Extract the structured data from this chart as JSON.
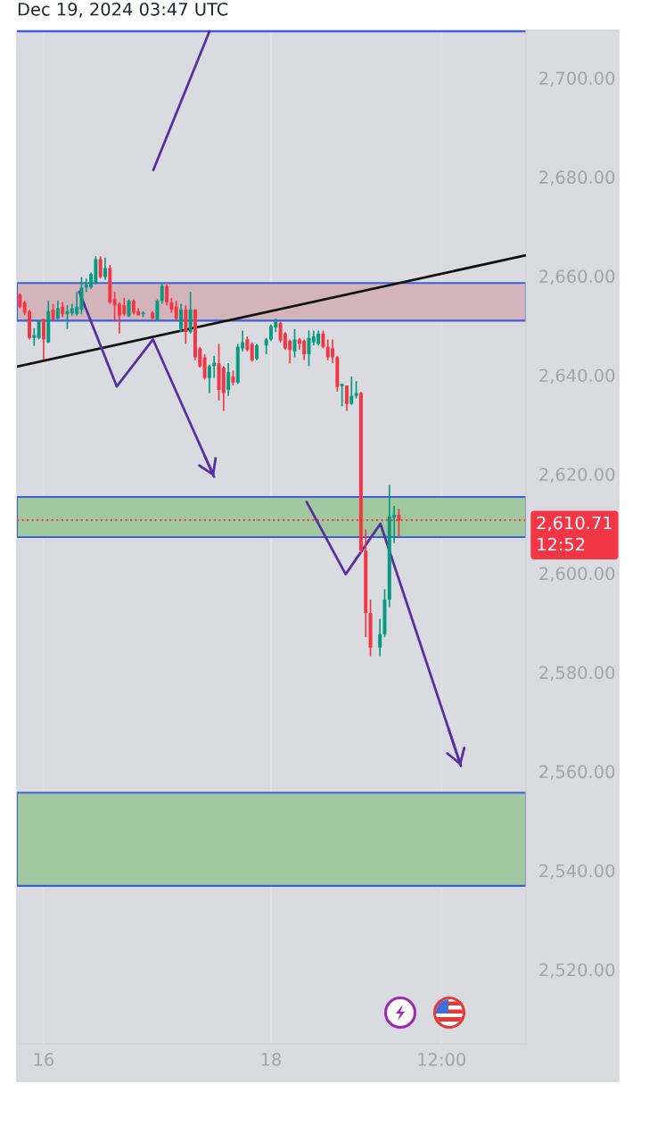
{
  "chart_data": {
    "type": "candlestick",
    "title": "Dec 19, 2024 03:47 UTC",
    "x": [
      "2024-12-15T19:00",
      "2024-12-15T20:00",
      "2024-12-15T21:00",
      "2024-12-15T22:00",
      "2024-12-15T23:00",
      "2024-12-16T00:00",
      "2024-12-16T01:00",
      "2024-12-16T02:00",
      "2024-12-16T03:00",
      "2024-12-16T04:00",
      "2024-12-16T05:00",
      "2024-12-16T06:00",
      "2024-12-16T07:00",
      "2024-12-16T08:00",
      "2024-12-16T09:00",
      "2024-12-16T10:00",
      "2024-12-16T11:00",
      "2024-12-16T12:00",
      "2024-12-16T13:00",
      "2024-12-16T14:00",
      "2024-12-16T15:00",
      "2024-12-16T16:00",
      "2024-12-16T17:00",
      "2024-12-16T18:00",
      "2024-12-16T19:00",
      "2024-12-16T20:00",
      "2024-12-16T21:00",
      "2024-12-16T23:00",
      "2024-12-17T00:00",
      "2024-12-17T01:00",
      "2024-12-17T02:00",
      "2024-12-17T03:00",
      "2024-12-17T04:00",
      "2024-12-17T05:00",
      "2024-12-17T06:00",
      "2024-12-17T07:00",
      "2024-12-17T08:00",
      "2024-12-17T09:00",
      "2024-12-17T10:00",
      "2024-12-17T11:00",
      "2024-12-17T12:00",
      "2024-12-17T13:00",
      "2024-12-17T14:00",
      "2024-12-17T15:00",
      "2024-12-17T16:00",
      "2024-12-17T17:00",
      "2024-12-17T18:00",
      "2024-12-17T19:00",
      "2024-12-17T20:00",
      "2024-12-17T21:00",
      "2024-12-17T23:00",
      "2024-12-18T00:00",
      "2024-12-18T01:00",
      "2024-12-18T02:00",
      "2024-12-18T03:00",
      "2024-12-18T04:00",
      "2024-12-18T05:00",
      "2024-12-18T06:00",
      "2024-12-18T07:00",
      "2024-12-18T08:00",
      "2024-12-18T09:00",
      "2024-12-18T10:00",
      "2024-12-18T11:00",
      "2024-12-18T12:00",
      "2024-12-18T13:00",
      "2024-12-18T14:00",
      "2024-12-18T15:00",
      "2024-12-18T16:00",
      "2024-12-18T17:00",
      "2024-12-18T18:00",
      "2024-12-18T19:00",
      "2024-12-18T20:00",
      "2024-12-18T21:00",
      "2024-12-18T23:00",
      "2024-12-19T00:00",
      "2024-12-19T01:00",
      "2024-12-19T02:00",
      "2024-12-19T03:00"
    ],
    "ohlc": [
      [
        2656.2,
        2656.5,
        2653.5,
        2653.8
      ],
      [
        2654.7,
        2655.0,
        2652.1,
        2652.6
      ],
      [
        2652.9,
        2653.2,
        2647.2,
        2647.5
      ],
      [
        2647.5,
        2649.5,
        2645.9,
        2648.1
      ],
      [
        2647.5,
        2651.1,
        2647.2,
        2651.0
      ],
      [
        2651.3,
        2651.4,
        2643.1,
        2647.2
      ],
      [
        2646.6,
        2655.0,
        2646.5,
        2652.9
      ],
      [
        2653.2,
        2654.4,
        2651.1,
        2651.3
      ],
      [
        2651.4,
        2655.0,
        2651.1,
        2653.5
      ],
      [
        2653.8,
        2654.7,
        2651.7,
        2652.3
      ],
      [
        2652.3,
        2654.1,
        2649.3,
        2652.9
      ],
      [
        2652.5,
        2654.4,
        2652.0,
        2653.5
      ],
      [
        2652.3,
        2656.8,
        2652.0,
        2653.8
      ],
      [
        2653.2,
        2659.8,
        2652.3,
        2657.7
      ],
      [
        2657.7,
        2659.5,
        2656.8,
        2658.3
      ],
      [
        2657.7,
        2660.7,
        2657.4,
        2660.4
      ],
      [
        2658.6,
        2664.0,
        2658.3,
        2663.4
      ],
      [
        2663.4,
        2664.0,
        2659.5,
        2659.8
      ],
      [
        2659.8,
        2663.7,
        2659.2,
        2661.6
      ],
      [
        2661.6,
        2662.2,
        2654.4,
        2654.7
      ],
      [
        2655.3,
        2656.8,
        2650.8,
        2654.1
      ],
      [
        2654.4,
        2654.7,
        2648.4,
        2652.0
      ],
      [
        2654.1,
        2655.6,
        2651.9,
        2652.3
      ],
      [
        2651.9,
        2655.3,
        2651.7,
        2655.0
      ],
      [
        2655.0,
        2655.3,
        2652.3,
        2652.6
      ],
      [
        2652.9,
        2653.5,
        2652.0,
        2652.1
      ],
      [
        2652.3,
        2652.9,
        2651.7,
        2652.6
      ],
      [
        2652.6,
        2652.9,
        2651.3,
        2651.4
      ],
      [
        2651.1,
        2655.3,
        2650.9,
        2655.0
      ],
      [
        2655.0,
        2658.6,
        2654.4,
        2658.0
      ],
      [
        2658.0,
        2658.3,
        2654.1,
        2654.7
      ],
      [
        2654.7,
        2655.6,
        2652.6,
        2653.2
      ],
      [
        2653.8,
        2655.0,
        2651.1,
        2651.4
      ],
      [
        2649.3,
        2654.4,
        2648.7,
        2653.2
      ],
      [
        2653.2,
        2654.1,
        2646.3,
        2648.7
      ],
      [
        2648.7,
        2656.8,
        2648.4,
        2653.2
      ],
      [
        2653.2,
        2653.3,
        2643.0,
        2643.6
      ],
      [
        2645.4,
        2645.7,
        2641.5,
        2641.8
      ],
      [
        2643.6,
        2644.2,
        2639.1,
        2639.4
      ],
      [
        2639.4,
        2642.1,
        2636.4,
        2641.8
      ],
      [
        2641.8,
        2643.9,
        2639.4,
        2642.5
      ],
      [
        2642.4,
        2646.3,
        2634.9,
        2637.0
      ],
      [
        2641.5,
        2641.8,
        2632.8,
        2636.4
      ],
      [
        2637.0,
        2642.4,
        2635.8,
        2640.6
      ],
      [
        2639.7,
        2640.9,
        2637.9,
        2638.5
      ],
      [
        2638.5,
        2646.3,
        2638.2,
        2645.7
      ],
      [
        2645.4,
        2649.0,
        2644.8,
        2646.6
      ],
      [
        2647.2,
        2647.8,
        2644.8,
        2645.1
      ],
      [
        2646.3,
        2646.6,
        2642.7,
        2643.0
      ],
      [
        2643.3,
        2646.3,
        2643.0,
        2646.0
      ],
      [
        2646.0,
        2647.5,
        2644.2,
        2647.2
      ],
      [
        2647.2,
        2650.2,
        2646.9,
        2649.9
      ],
      [
        2649.6,
        2651.4,
        2648.7,
        2650.8
      ],
      [
        2650.5,
        2650.8,
        2646.6,
        2647.0
      ],
      [
        2648.4,
        2648.7,
        2645.1,
        2645.4
      ],
      [
        2646.9,
        2647.2,
        2642.4,
        2645.1
      ],
      [
        2644.8,
        2649.3,
        2643.6,
        2647.2
      ],
      [
        2647.2,
        2647.5,
        2645.1,
        2646.3
      ],
      [
        2646.9,
        2647.2,
        2643.0,
        2644.2
      ],
      [
        2644.2,
        2649.0,
        2641.8,
        2647.5
      ],
      [
        2646.6,
        2649.0,
        2646.0,
        2647.8
      ],
      [
        2646.3,
        2649.0,
        2646.0,
        2648.4
      ],
      [
        2648.4,
        2649.0,
        2645.4,
        2645.7
      ],
      [
        2645.7,
        2647.2,
        2643.0,
        2643.6
      ],
      [
        2645.4,
        2647.2,
        2642.4,
        2643.6
      ],
      [
        2643.6,
        2643.9,
        2636.7,
        2637.6
      ],
      [
        2637.8,
        2638.3,
        2633.7,
        2638.2
      ],
      [
        2637.9,
        2637.9,
        2632.8,
        2634.2
      ],
      [
        2634.2,
        2639.7,
        2634.0,
        2635.8
      ],
      [
        2635.8,
        2638.8,
        2635.3,
        2636.4
      ],
      [
        2636.4,
        2636.6,
        2604.0,
        2604.6
      ],
      [
        2604.6,
        2608.8,
        2587.1,
        2592.0
      ],
      [
        2592.0,
        2594.7,
        2583.2,
        2585.0
      ],
      [
        2585.0,
        2590.8,
        2583.2,
        2587.7
      ],
      [
        2587.7,
        2596.8,
        2587.1,
        2594.7
      ],
      [
        2594.7,
        2617.8,
        2593.2,
        2611.5
      ],
      [
        2611.2,
        2613.6,
        2606.1,
        2611.8
      ],
      [
        2611.8,
        2613.0,
        2607.3,
        2610.71
      ]
    ],
    "colors": [
      "#f23645",
      "#f23645",
      "#f23645",
      "#089981",
      "#089981",
      "#f23645",
      "#089981",
      "#f23645",
      "#089981",
      "#f23645",
      "#089981",
      "#089981",
      "#089981",
      "#089981",
      "#089981",
      "#089981",
      "#089981",
      "#f23645",
      "#089981",
      "#f23645",
      "#f23645",
      "#f23645",
      "#f23645",
      "#089981",
      "#f23645",
      "#f23645",
      "#089981",
      "#f23645",
      "#089981",
      "#089981",
      "#f23645",
      "#f23645",
      "#f23645",
      "#089981",
      "#f23645",
      "#089981",
      "#f23645",
      "#f23645",
      "#f23645",
      "#089981",
      "#089981",
      "#f23645",
      "#f23645",
      "#089981",
      "#f23645",
      "#089981",
      "#089981",
      "#f23645",
      "#f23645",
      "#089981",
      "#089981",
      "#089981",
      "#089981",
      "#f23645",
      "#f23645",
      "#f23645",
      "#089981",
      "#f23645",
      "#f23645",
      "#089981",
      "#089981",
      "#089981",
      "#f23645",
      "#f23645",
      "#f23645",
      "#f23645",
      "#089981",
      "#f23645",
      "#089981",
      "#089981",
      "#f23645",
      "#f23645",
      "#f23645",
      "#089981",
      "#089981",
      "#089981",
      "#089981",
      "#f23645"
    ],
    "series": [
      {
        "type": "line",
        "color": "#111111",
        "x": [
          "2024-12-15T18:22",
          "2024-12-20T05:50"
        ],
        "values": [
          2641.7,
          2664.2
        ]
      },
      {
        "type": "line",
        "color": "#55309e",
        "x": [
          "2024-12-16T07:32",
          "2024-12-16T15:27",
          "2024-12-16T23:06",
          "2024-12-17T11:58"
        ],
        "values": [
          2656.8,
          2637.7,
          2647.2,
          2619.5
        ]
      },
      {
        "type": "line",
        "color": "#55309e",
        "x": [
          "2024-12-18T07:32",
          "2024-12-18T15:46",
          "2024-12-18T23:06",
          "2024-12-19T16:06"
        ],
        "values": [
          2614.4,
          2599.8,
          2610.0,
          2561.1
        ]
      },
      {
        "type": "line",
        "color": "#55309e",
        "x": [
          "2024-12-16T23:10",
          "2024-12-17T11:06"
        ],
        "values": [
          2681.4,
          2709.6
        ]
      }
    ],
    "bands": [
      {
        "axis": "y",
        "from": 2651.0,
        "to": 2658.6,
        "color": "#d3b4bb"
      },
      {
        "axis": "y",
        "from": 2607.3,
        "to": 2615.4,
        "color": "#a2c89f"
      },
      {
        "axis": "y",
        "from": 2536.9,
        "to": 2555.7,
        "color": "#a2c89f"
      }
    ],
    "ref_lines": [
      {
        "axis": "y",
        "value": 2709.4,
        "color": "#3d5fd9",
        "line_style": "solid"
      },
      {
        "axis": "y",
        "value": 2610.71,
        "label": "2,610.71\n12:52",
        "color": "#f23645",
        "line_style": "dotted"
      }
    ],
    "xlim": [
      "2024-12-15T18:22",
      "2024-12-20T05:50"
    ],
    "xticks": [
      {
        "value": "2024-12-16",
        "label": "16"
      },
      {
        "value": "2024-12-18",
        "label": "18"
      },
      {
        "value": "2024-12-19T12:00",
        "label": "12:00"
      }
    ],
    "ylim": [
      2505,
      2709.6
    ],
    "yticks": [
      {
        "value": 2520,
        "label": "2,520.00"
      },
      {
        "value": 2540,
        "label": "2,540.00"
      },
      {
        "value": 2560,
        "label": "2,560.00"
      },
      {
        "value": 2580,
        "label": "2,580.00"
      },
      {
        "value": 2600,
        "label": "2,600.00"
      },
      {
        "value": 2620,
        "label": "2,620.00"
      },
      {
        "value": 2640,
        "label": "2,640.00"
      },
      {
        "value": 2660,
        "label": "2,660.00"
      },
      {
        "value": 2680,
        "label": "2,680.00"
      },
      {
        "value": 2700,
        "label": "2,700.00"
      }
    ],
    "grid": "x"
  }
}
